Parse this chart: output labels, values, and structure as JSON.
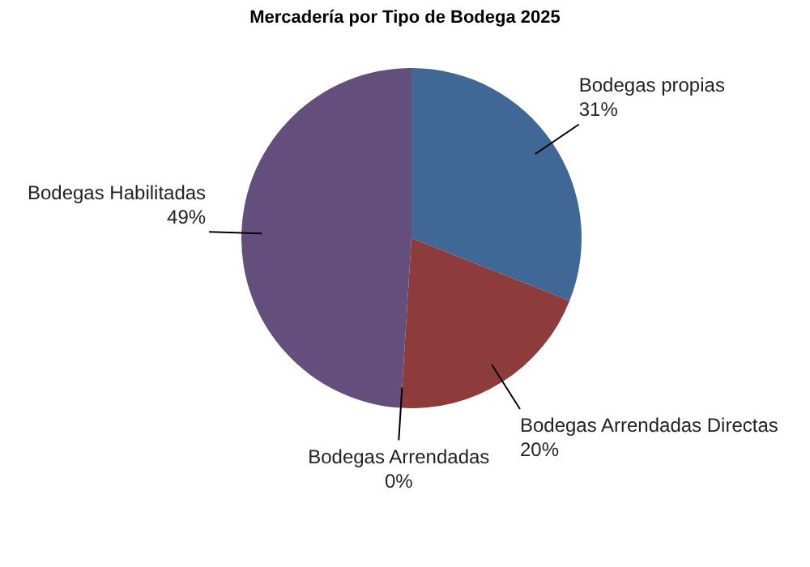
{
  "chart_data": {
    "type": "pie",
    "title": "Mercadería por Tipo de Bodega 2025",
    "categories": [
      "Bodegas propias",
      "Bodegas Arrendadas Directas",
      "Bodegas Arrendadas",
      "Bodegas Habilitadas"
    ],
    "values": [
      31,
      20,
      0,
      49
    ],
    "colors": [
      "#3f6896",
      "#8e3c3b",
      "#6f8a3a",
      "#644e7c"
    ],
    "value_labels": [
      "31%",
      "20%",
      "0%",
      "49%"
    ]
  }
}
